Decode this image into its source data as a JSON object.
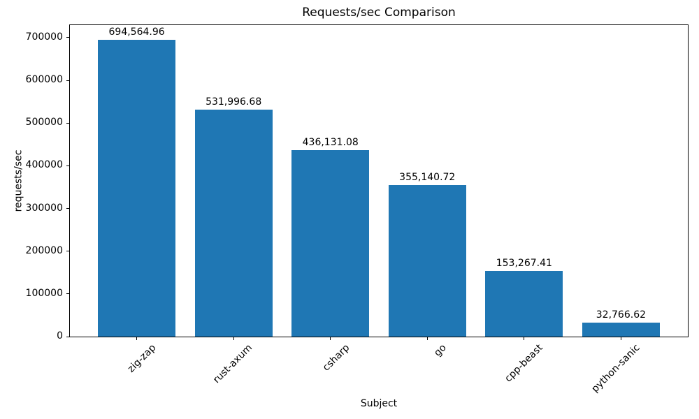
{
  "chart_data": {
    "type": "bar",
    "title": "Requests/sec Comparison",
    "xlabel": "Subject",
    "ylabel": "requests/sec",
    "categories": [
      "zig-zap",
      "rust-axum",
      "csharp",
      "go",
      "cpp-beast",
      "python-sanic"
    ],
    "values": [
      694564.96,
      531996.68,
      436131.08,
      355140.72,
      153267.41,
      32766.62
    ],
    "bar_labels": [
      "694,564.96",
      "531,996.68",
      "436,131.08",
      "355,140.72",
      "153,267.41",
      "32,766.62"
    ],
    "yticks": [
      0,
      100000,
      200000,
      300000,
      400000,
      500000,
      600000,
      700000
    ],
    "ylim": [
      0,
      729293
    ],
    "xlim": [
      -0.69,
      5.69
    ],
    "bar_width_fraction": 0.8,
    "bar_color": "#1f77b4",
    "text_color": "#000000",
    "background_color": "#ffffff",
    "grid": false,
    "legend": null,
    "x_tick_rotation_deg": 45
  }
}
